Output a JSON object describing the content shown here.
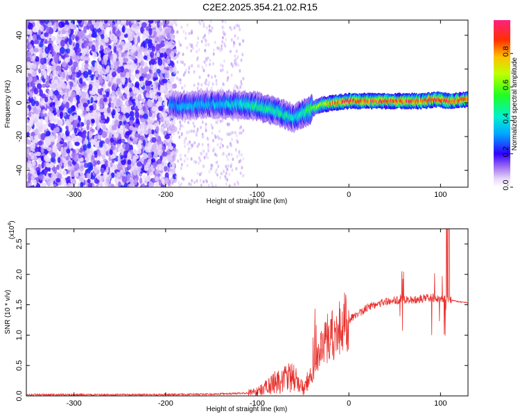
{
  "title": "C2E2.2025.354.21.02.R15",
  "chart_data": [
    {
      "type": "heatmap",
      "xlabel": "Height of straight line (km)",
      "ylabel": "Frequency (Hz)",
      "xlim": [
        -352,
        130
      ],
      "ylim": [
        -50,
        49
      ],
      "x_ticks": [
        -300,
        -200,
        -100,
        0,
        100
      ],
      "y_ticks": [
        -40,
        -20,
        0,
        20,
        40
      ],
      "colorbar": {
        "label": "Normalized spectral amplitude",
        "range": [
          0.0,
          1.0
        ],
        "ticks": [
          0.0,
          0.2,
          0.4,
          0.6,
          0.8
        ],
        "tick_labels": [
          "0.0",
          "0.2",
          "0.4",
          "0.6",
          "0.8"
        ]
      },
      "ridge_trace": {
        "x": [
          -195,
          -180,
          -160,
          -140,
          -120,
          -100,
          -80,
          -60,
          -45,
          -30,
          -15,
          0,
          20,
          50,
          80,
          95,
          110,
          130
        ],
        "y": [
          -1,
          -2,
          -1,
          -1,
          -1,
          -2,
          -5,
          -9,
          -5,
          -1,
          0,
          1,
          1,
          1,
          1,
          2,
          1,
          2
        ],
        "amplitude": [
          0.3,
          0.35,
          0.35,
          0.35,
          0.4,
          0.45,
          0.45,
          0.4,
          0.5,
          0.65,
          0.85,
          0.9,
          0.9,
          0.9,
          0.9,
          0.95,
          0.9,
          0.85
        ]
      },
      "noise_region": {
        "x_range": [
          -352,
          -195
        ],
        "amplitude": "low"
      }
    },
    {
      "type": "line",
      "xlabel": "Height of straight line (km)",
      "ylabel": "SNR (10 * v/v)",
      "y_scale_label": "(x10",
      "y_scale_exponent": "4",
      "xlim": [
        -352,
        130
      ],
      "ylim": [
        0,
        2.75
      ],
      "x_ticks": [
        -300,
        -200,
        -100,
        0,
        100
      ],
      "y_ticks": [
        0.0,
        0.5,
        1.0,
        1.5,
        2.0,
        2.5
      ],
      "y_tick_labels": [
        "0.0",
        "0.5",
        "1.0",
        "1.5",
        "2.0",
        "2.5"
      ],
      "color": "#e8302c",
      "series": [
        {
          "x": [
            -352,
            -300,
            -250,
            -200,
            -150,
            -120,
            -100,
            -90,
            -80,
            -70,
            -60,
            -50,
            -40,
            -30,
            -20,
            -10,
            0,
            10,
            20,
            30,
            40,
            50,
            60,
            70,
            80,
            90,
            100,
            110,
            120,
            130
          ],
          "y": [
            0.02,
            0.02,
            0.02,
            0.02,
            0.03,
            0.04,
            0.06,
            0.12,
            0.18,
            0.22,
            0.25,
            0.1,
            0.4,
            0.75,
            1.0,
            1.1,
            1.25,
            1.35,
            1.45,
            1.52,
            1.55,
            1.57,
            1.58,
            1.58,
            1.6,
            1.62,
            1.6,
            1.58,
            1.55,
            1.53
          ]
        }
      ]
    }
  ]
}
